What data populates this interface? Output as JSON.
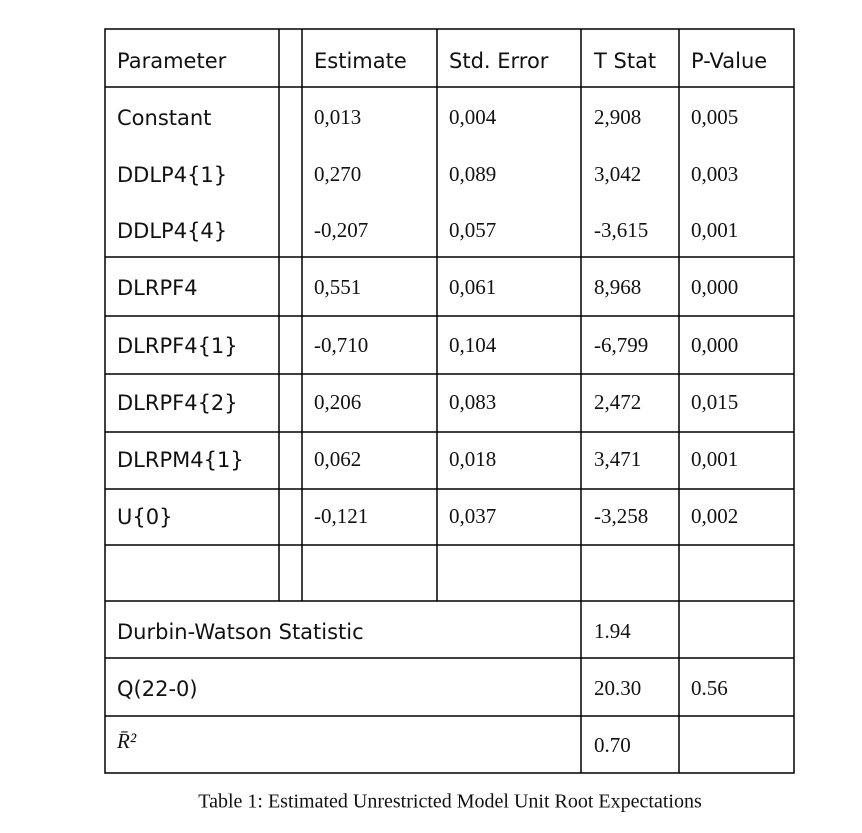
{
  "table": {
    "header": [
      "Parameter",
      "Estimate",
      "Std. Error",
      "T Stat",
      "P-Value"
    ],
    "rows": [
      [
        "Constant",
        "0,013",
        "0,004",
        "2,908",
        "0,005"
      ],
      [
        "DDLP4{1}",
        "0,270",
        "0,089",
        "3,042",
        "0,003"
      ],
      [
        "DDLP4{4}",
        "-0,207",
        "0,057",
        "-3,615",
        "0,001"
      ],
      [
        "DLRPF4",
        "0,551",
        "0,061",
        "8,968",
        "0,000"
      ],
      [
        "DLRPF4{1}",
        "-0,710",
        "0,104",
        "-6,799",
        "0,000"
      ],
      [
        "DLRPF4{2}",
        "0,206",
        "0,083",
        "2,472",
        "0,015"
      ],
      [
        "DLRPM4{1}",
        "0,062",
        "0,018",
        "3,471",
        "0,001"
      ],
      [
        "U{0}",
        "-0,121",
        "0,037",
        "-3,258",
        "0,002"
      ]
    ],
    "summary": [
      [
        "Durbin-Watson Statistic",
        "1.94"
      ],
      [
        "Q(22-0)",
        "20.30",
        "0.56"
      ],
      [
        "R̄²",
        "0.70"
      ]
    ]
  },
  "caption": "Table 1: Estimated Unrestricted Model Unit Root Expectations"
}
